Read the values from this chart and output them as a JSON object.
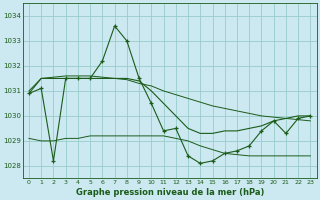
{
  "title": "Graphe pression niveau de la mer (hPa)",
  "bg_color": "#cce8f0",
  "grid_color": "#99cccc",
  "line_color": "#1a5c1a",
  "xlim": [
    -0.5,
    23.5
  ],
  "ylim": [
    1027.5,
    1034.5
  ],
  "yticks": [
    1028,
    1029,
    1030,
    1031,
    1032,
    1033,
    1034
  ],
  "hours": [
    0,
    1,
    2,
    3,
    4,
    5,
    6,
    7,
    8,
    9,
    10,
    11,
    12,
    13,
    14,
    15,
    16,
    17,
    18,
    19,
    20,
    21,
    22,
    23
  ],
  "main_line": [
    1030.9,
    1031.1,
    1028.2,
    1031.5,
    1031.5,
    1031.5,
    1032.2,
    1033.6,
    1033.0,
    1031.5,
    1030.5,
    1029.4,
    1029.5,
    1028.4,
    1028.1,
    1028.2,
    1028.5,
    1028.6,
    1028.8,
    1029.4,
    1029.8,
    1029.3,
    1029.9,
    1030.0
  ],
  "smooth_line": [
    1030.9,
    1031.5,
    1031.5,
    1031.5,
    1031.5,
    1031.5,
    1031.5,
    1031.5,
    1031.5,
    1031.4,
    1031.0,
    1030.5,
    1030.0,
    1029.5,
    1029.3,
    1029.3,
    1029.4,
    1029.4,
    1029.5,
    1029.6,
    1029.8,
    1029.9,
    1030.0,
    1030.0
  ],
  "upper_envelope": [
    1031.0,
    1031.5,
    1031.55,
    1031.6,
    1031.6,
    1031.6,
    1031.55,
    1031.5,
    1031.45,
    1031.3,
    1031.2,
    1031.0,
    1030.85,
    1030.7,
    1030.55,
    1030.4,
    1030.3,
    1030.2,
    1030.1,
    1030.0,
    1029.95,
    1029.9,
    1029.85,
    1029.8
  ],
  "lower_envelope": [
    1029.1,
    1029.0,
    1029.0,
    1029.1,
    1029.1,
    1029.2,
    1029.2,
    1029.2,
    1029.2,
    1029.2,
    1029.2,
    1029.2,
    1029.1,
    1029.0,
    1028.8,
    1028.65,
    1028.5,
    1028.45,
    1028.4,
    1028.4,
    1028.4,
    1028.4,
    1028.4,
    1028.4
  ],
  "xtick_labels": [
    "0",
    "1",
    "2",
    "3",
    "4",
    "5",
    "6",
    "7",
    "8",
    "9",
    "10",
    "11",
    "12",
    "13",
    "14",
    "15",
    "16",
    "17",
    "18",
    "19",
    "20",
    "21",
    "22",
    "23"
  ]
}
